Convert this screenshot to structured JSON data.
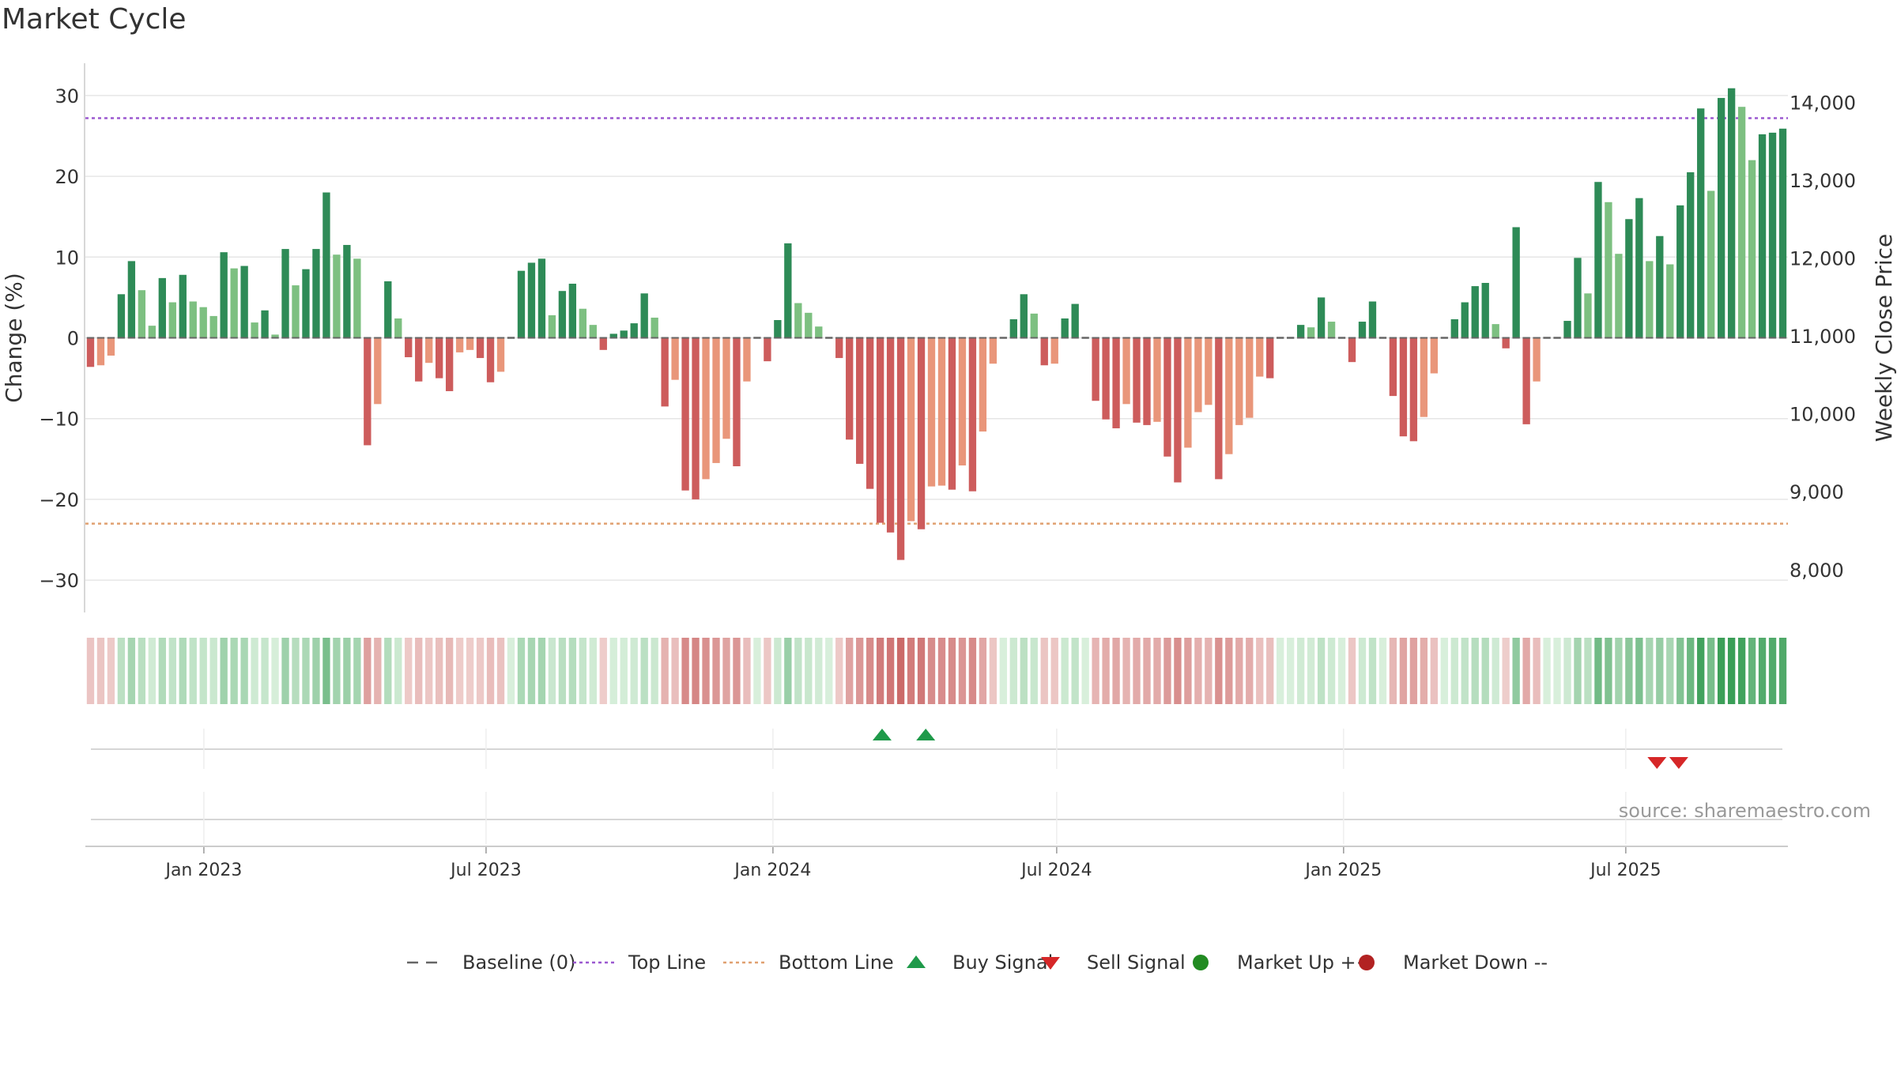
{
  "chart_data": {
    "type": "bar",
    "title": "Market Cycle",
    "ylabel": "Change (%)",
    "y2label": "Weekly Close Price",
    "ylim": [
      -34,
      34
    ],
    "y2lim": [
      7450,
      14500
    ],
    "yticks": [
      -30,
      -20,
      -10,
      0,
      10,
      20,
      30
    ],
    "yticks_labels": [
      "−30",
      "−20",
      "−10",
      "0",
      "10",
      "20",
      "30"
    ],
    "y2ticks": [
      8000,
      9000,
      10000,
      11000,
      12000,
      13000,
      14000
    ],
    "y2ticks_labels": [
      "8,000",
      "9,000",
      "10,000",
      "11,000",
      "12,000",
      "13,000",
      "14,000"
    ],
    "x_start": "2022-10-17",
    "x_end": "2025-10-13",
    "week_start": "2022-10-17",
    "xticks": [
      {
        "date": "2023-01-01",
        "label": "Jan 2023"
      },
      {
        "date": "2023-07-01",
        "label": "Jul 2023"
      },
      {
        "date": "2024-01-01",
        "label": "Jan 2024"
      },
      {
        "date": "2024-07-01",
        "label": "Jul 2024"
      },
      {
        "date": "2025-01-01",
        "label": "Jan 2025"
      },
      {
        "date": "2025-07-01",
        "label": "Jul 2025"
      }
    ],
    "grid": true,
    "top_line": 27.2,
    "bottom_line": -23,
    "values": [
      -3.6,
      -3.4,
      -2.2,
      5.4,
      9.5,
      5.9,
      1.5,
      7.4,
      4.4,
      7.8,
      4.5,
      3.8,
      2.7,
      10.6,
      8.6,
      8.9,
      1.9,
      3.4,
      0.4,
      11,
      6.5,
      8.5,
      11,
      18,
      10.3,
      11.5,
      9.8,
      -13.3,
      -8.2,
      7,
      2.4,
      -2.4,
      -5.4,
      -3.1,
      -5,
      -6.6,
      -1.8,
      -1.5,
      -2.5,
      -5.5,
      -4.2,
      0,
      8.3,
      9.3,
      9.8,
      2.8,
      5.8,
      6.7,
      3.6,
      1.6,
      -1.5,
      0.5,
      0.9,
      1.8,
      5.5,
      2.5,
      -8.5,
      -5.2,
      -18.9,
      -20,
      -17.5,
      -15.5,
      -12.5,
      -15.9,
      -5.4,
      0,
      -2.9,
      2.2,
      11.7,
      4.3,
      3.1,
      1.4,
      0,
      -2.5,
      -12.6,
      -15.6,
      -18.7,
      -22.9,
      -24.1,
      -27.5,
      -22.7,
      -23.7,
      -18.4,
      -18.3,
      -18.8,
      -15.8,
      -19,
      -11.6,
      -3.2,
      0,
      2.3,
      5.4,
      3,
      -3.4,
      -3.2,
      2.4,
      4.2,
      0,
      -7.8,
      -10.1,
      -11.2,
      -8.2,
      -10.5,
      -10.8,
      -10.4,
      -14.7,
      -17.9,
      -13.6,
      -9.2,
      -8.3,
      -17.5,
      -14.4,
      -10.8,
      -9.9,
      -4.8,
      -5,
      0,
      0,
      1.6,
      1.3,
      5,
      2,
      0,
      -3,
      2,
      4.5,
      0,
      -7.2,
      -12.2,
      -12.8,
      -9.8,
      -4.4,
      0,
      2.3,
      4.4,
      6.4,
      6.8,
      1.7,
      -1.3,
      13.7,
      -10.7,
      -5.4,
      0,
      0,
      2.1,
      9.9,
      5.5,
      19.3,
      16.8,
      10.4,
      14.7,
      17.3,
      9.5,
      12.6,
      9.1,
      16.4,
      20.5,
      28.4,
      18.2,
      29.7,
      30.9,
      28.6,
      22,
      25.2,
      25.4,
      25.9
    ],
    "buy_signal_dates": [
      "2024-03-11",
      "2024-04-08"
    ],
    "sell_signal_dates": [
      "2025-07-21",
      "2025-08-04"
    ],
    "legend_position": "bottom-center",
    "legend": [
      {
        "type": "baseline",
        "label": "Baseline (0)"
      },
      {
        "type": "top",
        "label": "Top Line"
      },
      {
        "type": "bottom",
        "label": "Bottom Line"
      },
      {
        "type": "buy",
        "label": "Buy Signal"
      },
      {
        "type": "sell",
        "label": "Sell Signal"
      },
      {
        "type": "up",
        "label": "Market Up ++"
      },
      {
        "type": "down",
        "label": "Market Down --"
      }
    ],
    "annotation": "source: sharemaestro.com",
    "colors": {
      "up_strong": "#2e8b57",
      "up_light": "#7dc081",
      "down_strong": "#cd5c5c",
      "down_light": "#e9967a",
      "top_line": "#9b59d0",
      "bottom_line": "#e0a070",
      "buy": "#1f9a4a",
      "sell": "#d62728",
      "market_up": "#228b22",
      "market_down": "#b22222",
      "baseline": "#666666"
    }
  }
}
